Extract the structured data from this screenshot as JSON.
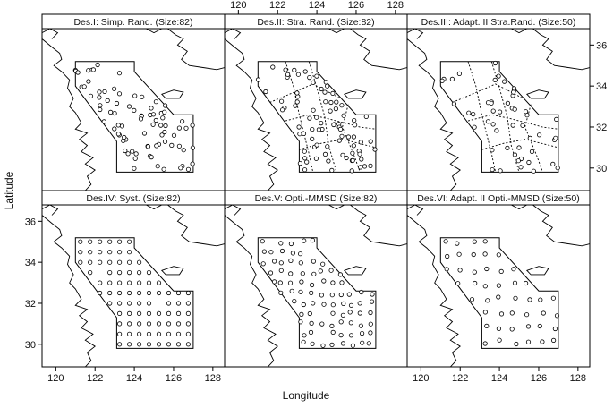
{
  "figure": {
    "xlabel": "Longitude",
    "ylabel": "Latitude"
  },
  "axes": {
    "x_ticks": [
      "120",
      "122",
      "124",
      "126",
      "128"
    ],
    "y_ticks": [
      "30",
      "32",
      "34",
      "36"
    ],
    "xlim": [
      119.3,
      128.6
    ],
    "ylim": [
      28.9,
      36.8
    ]
  },
  "panels": [
    {
      "title": "Des.I: Simp. Rand. (Size:82)",
      "design": "simple-random",
      "n": 82
    },
    {
      "title": "Des.II: Stra. Rand. (Size:82)",
      "design": "stratified-random",
      "n": 82
    },
    {
      "title": "Des.III: Adapt. II Stra.Rand. (Size:50)",
      "design": "adaptive-stratified-random",
      "n": 50
    },
    {
      "title": "Des.IV: Syst. (Size:82)",
      "design": "systematic",
      "n": 82
    },
    {
      "title": "Des.V: Opti.-MMSD (Size:82)",
      "design": "optimal-mmsd",
      "n": 82
    },
    {
      "title": "Des.VI: Adapt. II Opti.-MMSD (Size:50)",
      "design": "adaptive-optimal-mmsd",
      "n": 50
    }
  ],
  "study_region": {
    "boundary_lonlat": [
      [
        121.0,
        35.2
      ],
      [
        124.0,
        35.2
      ],
      [
        124.0,
        34.7
      ],
      [
        126.0,
        32.6
      ],
      [
        127.0,
        32.6
      ],
      [
        127.0,
        29.8
      ],
      [
        123.1,
        29.8
      ],
      [
        123.1,
        31.3
      ],
      [
        121.0,
        34.0
      ]
    ]
  },
  "colors": {
    "line": "#000000",
    "background": "#ffffff"
  }
}
